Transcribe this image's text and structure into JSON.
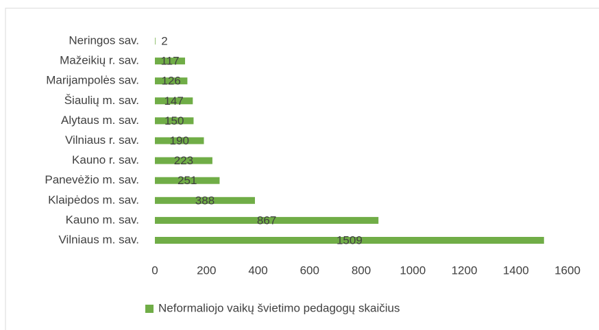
{
  "chart_data": {
    "type": "bar",
    "orientation": "horizontal",
    "categories": [
      "Neringos sav.",
      "Mažeikių r. sav.",
      "Marijampolės sav.",
      "Šiaulių m. sav.",
      "Alytaus m. sav.",
      "Vilniaus r. sav.",
      "Kauno r. sav.",
      "Panevėžio m. sav.",
      "Klaipėdos m. sav.",
      "Kauno m. sav.",
      "Vilniaus m. sav."
    ],
    "series": [
      {
        "name": "Neformaliojo vaikų švietimo pedagogų skaičius",
        "color": "#70ad47",
        "values": [
          2,
          117,
          126,
          147,
          150,
          190,
          223,
          251,
          388,
          867,
          1509
        ]
      }
    ],
    "xlim": [
      0,
      1600
    ],
    "xticks": [
      0,
      200,
      400,
      600,
      800,
      1000,
      1200,
      1400,
      1600
    ],
    "grid": false,
    "legend": "bottom"
  }
}
